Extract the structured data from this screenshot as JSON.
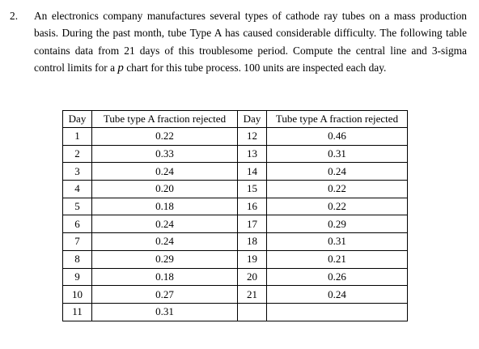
{
  "problem": {
    "number": "2.",
    "text_before_var": "An electronics company manufactures several types of cathode ray tubes on a mass production basis. During the past month, tube Type A has caused considerable difficulty. The following table contains data from 21 days of this troublesome period. Compute the central line and 3-sigma control limits for a ",
    "variable": "p",
    "text_after_var": " chart for this tube process. 100 units are inspected each day."
  },
  "table": {
    "headers": [
      "Day",
      "Tube type A fraction rejected",
      "Day",
      "Tube type A fraction rejected"
    ],
    "rows": [
      [
        "1",
        "0.22",
        "12",
        "0.46"
      ],
      [
        "2",
        "0.33",
        "13",
        "0.31"
      ],
      [
        "3",
        "0.24",
        "14",
        "0.24"
      ],
      [
        "4",
        "0.20",
        "15",
        "0.22"
      ],
      [
        "5",
        "0.18",
        "16",
        "0.22"
      ],
      [
        "6",
        "0.24",
        "17",
        "0.29"
      ],
      [
        "7",
        "0.24",
        "18",
        "0.31"
      ],
      [
        "8",
        "0.29",
        "19",
        "0.21"
      ],
      [
        "9",
        "0.18",
        "20",
        "0.26"
      ],
      [
        "10",
        "0.27",
        "21",
        "0.24"
      ],
      [
        "11",
        "0.31",
        "",
        ""
      ]
    ]
  }
}
